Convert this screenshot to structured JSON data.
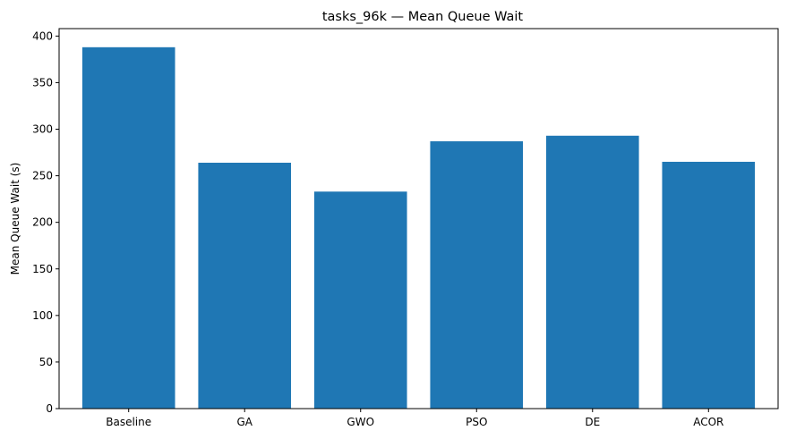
{
  "chart_data": {
    "type": "bar",
    "title": "tasks_96k — Mean Queue Wait",
    "xlabel": "",
    "ylabel": "Mean Queue Wait (s)",
    "categories": [
      "Baseline",
      "GA",
      "GWO",
      "PSO",
      "DE",
      "ACOR"
    ],
    "values": [
      388,
      264,
      233,
      287,
      293,
      265
    ],
    "ylim": [
      0,
      408
    ],
    "yticks": [
      0,
      50,
      100,
      150,
      200,
      250,
      300,
      350,
      400
    ],
    "grid": false,
    "legend": "none",
    "bar_color": "#1f77b4"
  }
}
